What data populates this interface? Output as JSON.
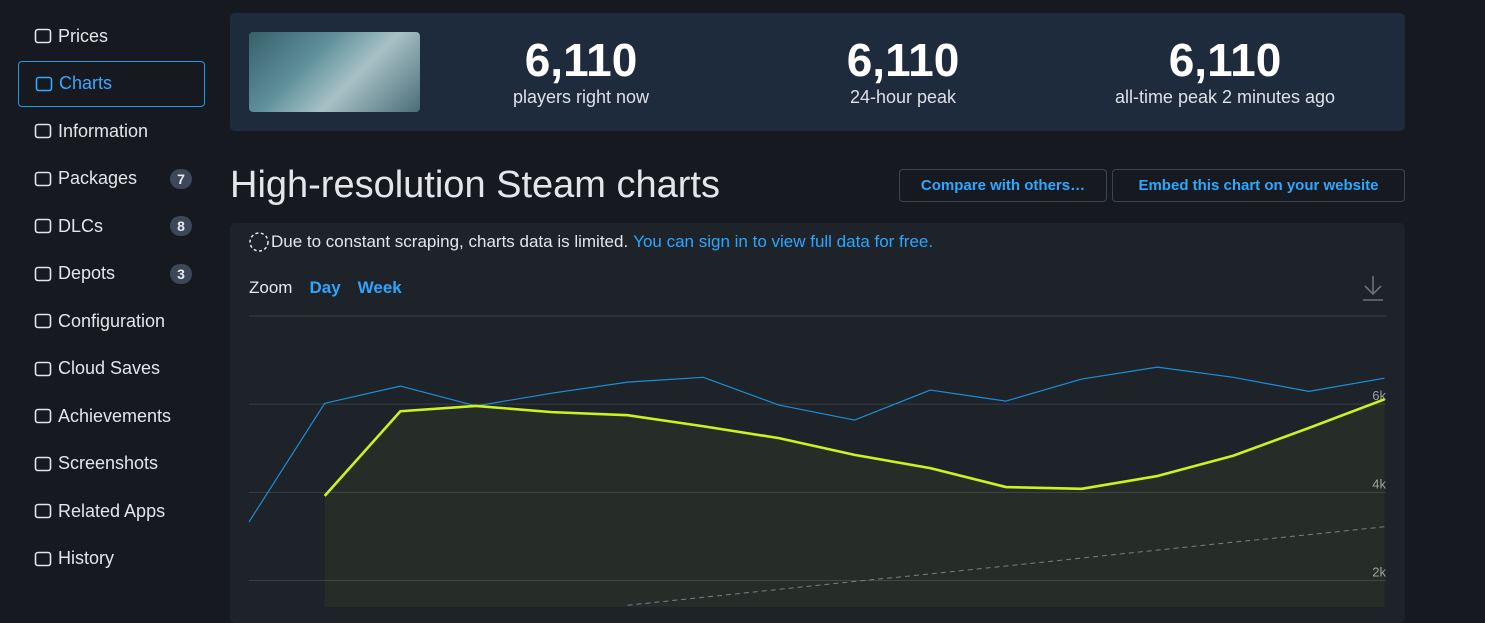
{
  "sidebar": {
    "items": [
      {
        "label": "Prices"
      },
      {
        "label": "Charts"
      },
      {
        "label": "Information"
      },
      {
        "label": "Packages",
        "badge": 7
      },
      {
        "label": "DLCs",
        "badge": 8
      },
      {
        "label": "Depots",
        "badge": 3
      },
      {
        "label": "Configuration"
      },
      {
        "label": "Cloud Saves"
      },
      {
        "label": "Achievements"
      },
      {
        "label": "Screenshots"
      },
      {
        "label": "Related Apps"
      },
      {
        "label": "History"
      }
    ]
  },
  "stats": [
    {
      "value": "6,110",
      "label": "players right now"
    },
    {
      "value": "6,110",
      "label": "24-hour peak"
    },
    {
      "value": "6,110",
      "label": "all-time peak 2 minutes ago"
    }
  ],
  "heading": "High-resolution Steam charts",
  "buttons": [
    "Compare with others…",
    "Embed this chart on your website"
  ],
  "notice": {
    "text": "Due to constant scraping, charts data is limited.",
    "link": "You can sign in to view full data for free."
  },
  "zoom": {
    "label": "Zoom",
    "options": [
      "Day",
      "Week"
    ]
  },
  "chart_data": {
    "type": "line",
    "categories": [
      null,
      null,
      null,
      null,
      null,
      null,
      null,
      null,
      null,
      null,
      null,
      null,
      null,
      null,
      null,
      null
    ],
    "series": [
      {
        "color": "#1b8fd8",
        "width": 1.2,
        "values": [
          3330,
          6020,
          6410,
          5960,
          6250,
          6500,
          6610,
          5980,
          5640,
          6320,
          6070,
          6570,
          6840,
          6610,
          6290,
          6590
        ]
      },
      {
        "color": "#c8f51f",
        "width": 2.6,
        "fill": true,
        "values": [
          null,
          3920,
          5840,
          5960,
          5820,
          5750,
          5500,
          5230,
          4850,
          4550,
          4120,
          4080,
          4370,
          4830,
          5460,
          6110
        ]
      },
      {
        "color": "#7a7f86",
        "width": 1,
        "dashed": true,
        "values": [
          null,
          null,
          null,
          null,
          null,
          1440,
          1620,
          1800,
          1980,
          2150,
          2330,
          2510,
          2690,
          2870,
          3040,
          3220
        ]
      }
    ],
    "ylim": [
      1400,
      8000
    ],
    "yticks": [
      {
        "value": 2000,
        "label": "2k"
      },
      {
        "value": 4000,
        "label": "4k"
      },
      {
        "value": 6000,
        "label": "6k"
      }
    ],
    "grid": true
  }
}
